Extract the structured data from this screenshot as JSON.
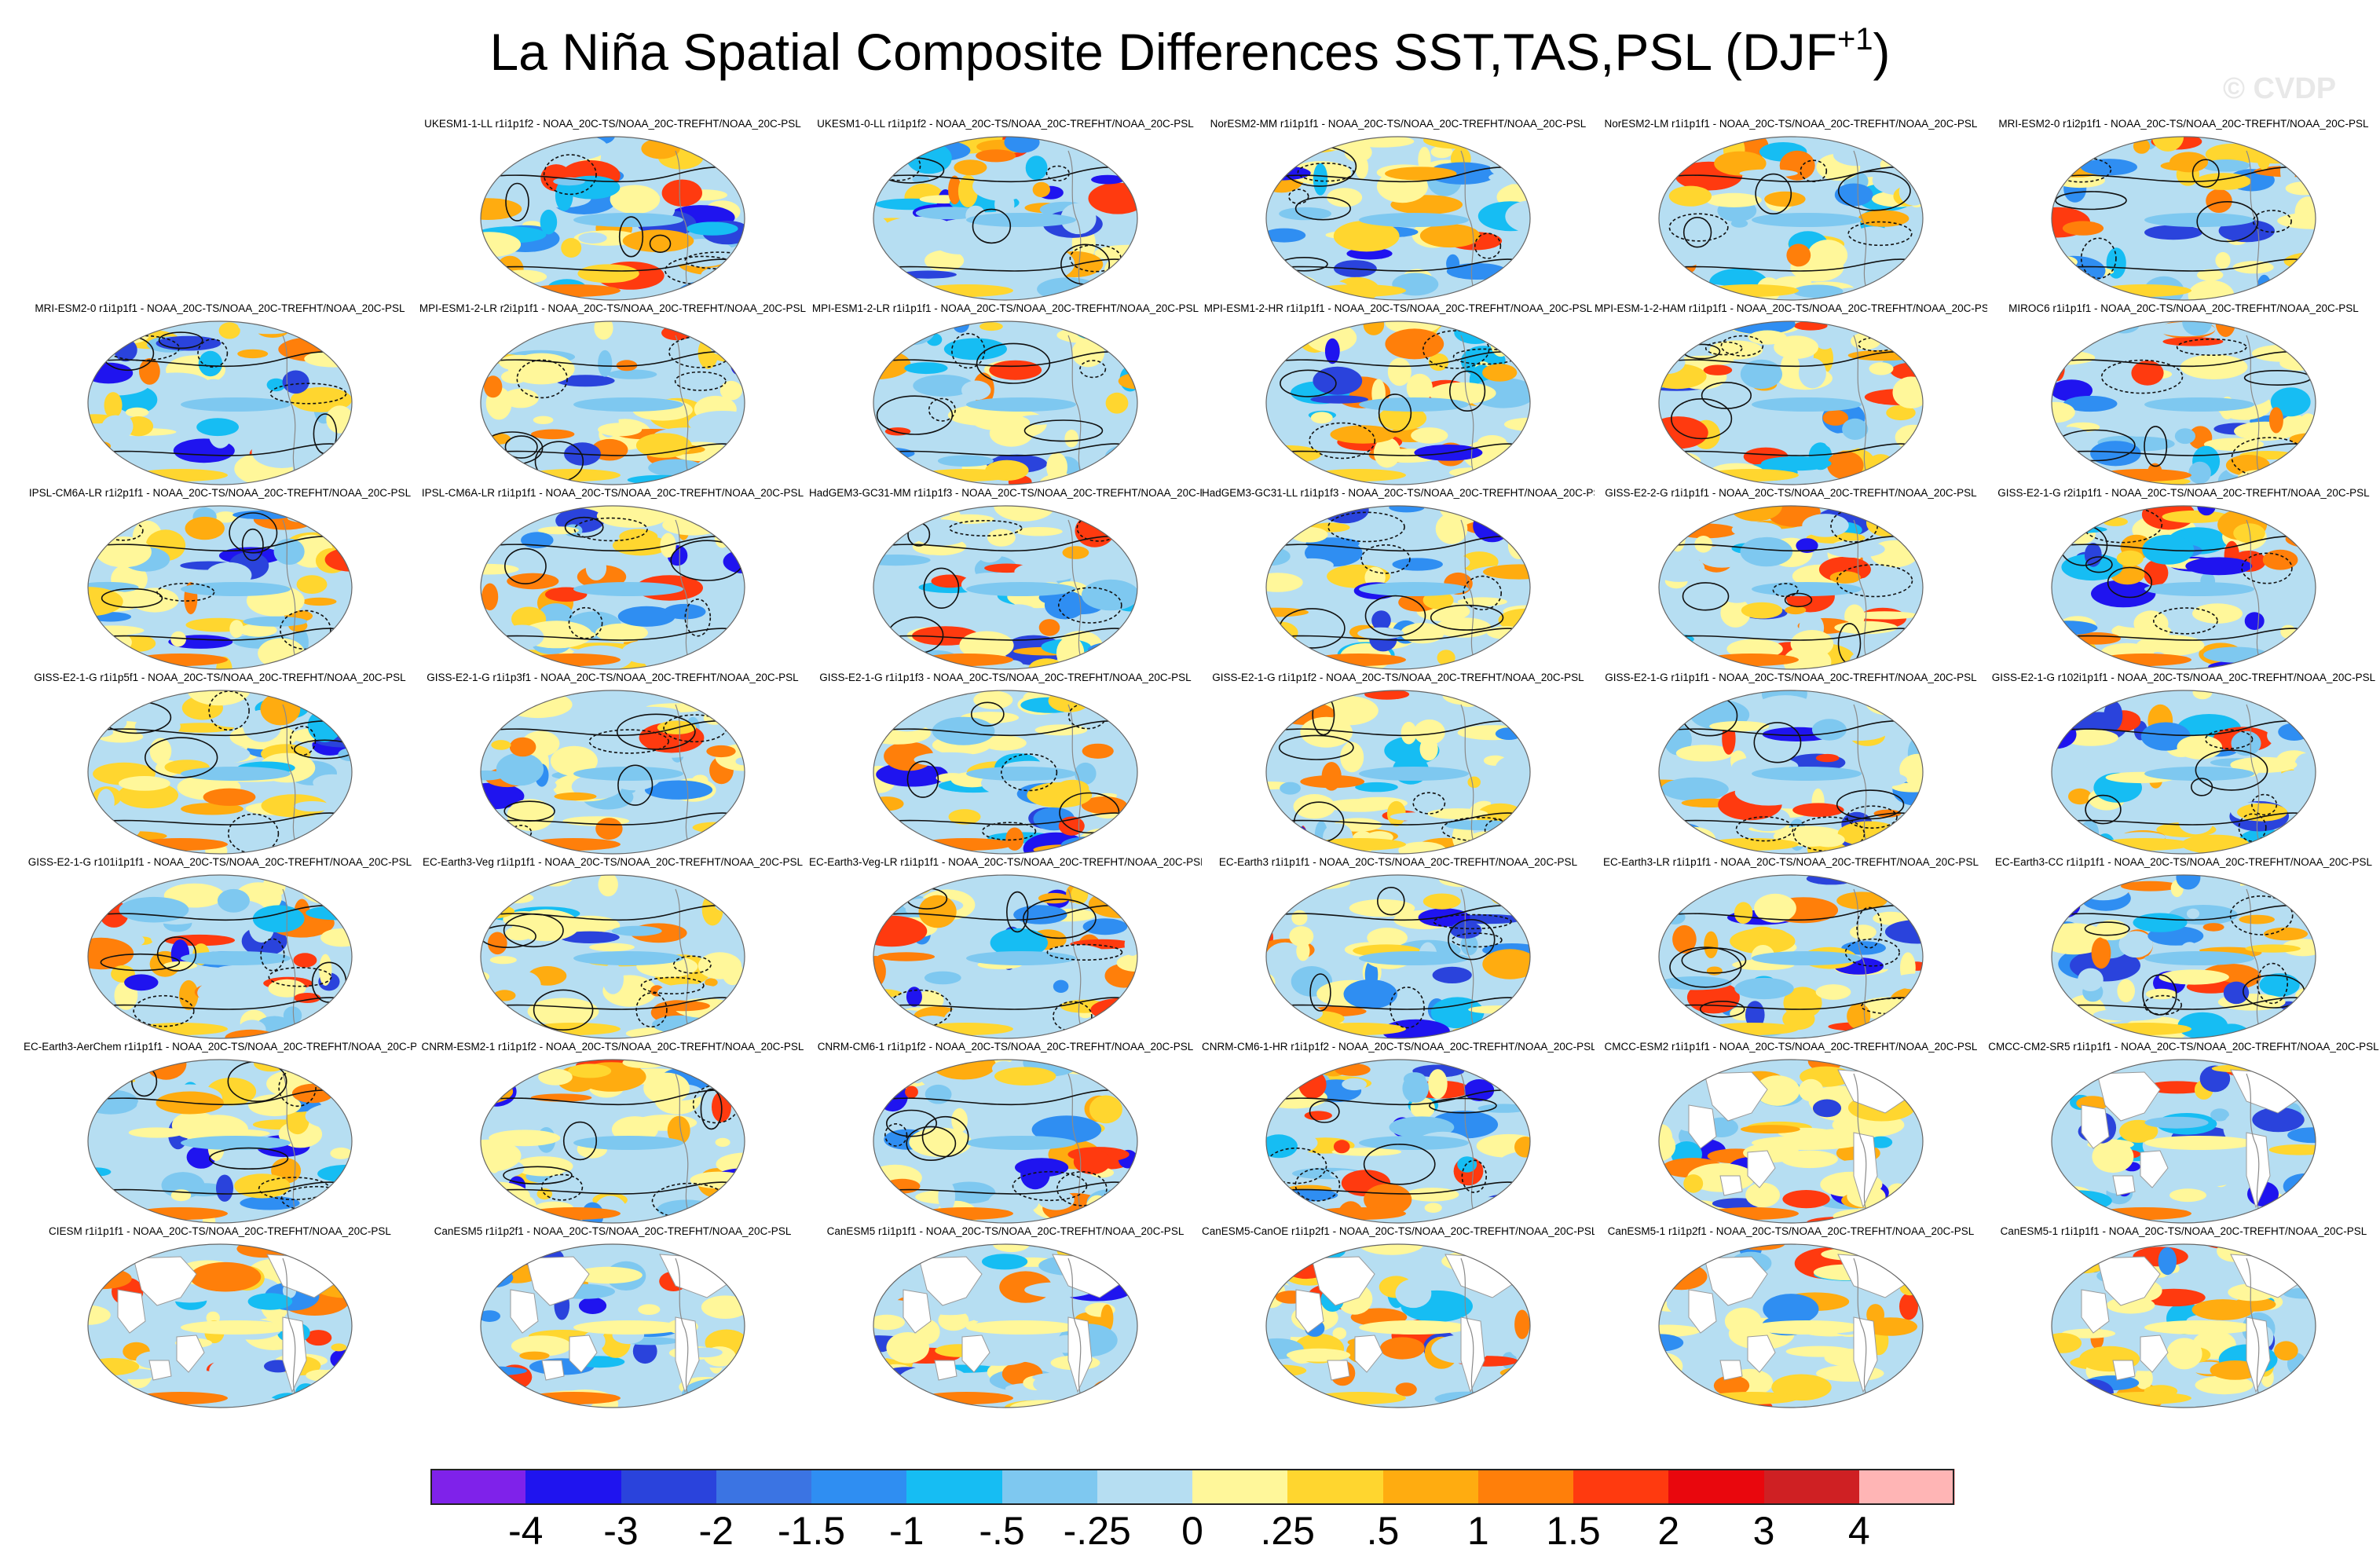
{
  "title": "La Niña Spatial Composite Differences SST,TAS,PSL (DJF",
  "title_superscript": "+1",
  "title_close": ")",
  "watermark": "© CVDP",
  "panel_suffix": " - NOAA_20C-TS/NOAA_20C-TREFHT/NOAA_20C-PSL",
  "rows": [
    [
      "",
      "UKESM1-1-LL r1i1p1f2",
      "UKESM1-0-LL r1i1p1f2",
      "NorESM2-MM r1i1p1f1",
      "NorESM2-LM r1i1p1f1",
      "MRI-ESM2-0 r1i2p1f1"
    ],
    [
      "MRI-ESM2-0 r1i1p1f1",
      "MPI-ESM1-2-LR r2i1p1f1",
      "MPI-ESM1-2-LR r1i1p1f1",
      "MPI-ESM1-2-HR r1i1p1f1",
      "MPI-ESM-1-2-HAM r1i1p1f1",
      "MIROC6 r1i1p1f1"
    ],
    [
      "IPSL-CM6A-LR r1i2p1f1",
      "IPSL-CM6A-LR r1i1p1f1",
      "HadGEM3-GC31-MM r1i1p1f3",
      "HadGEM3-GC31-LL r1i1p1f3",
      "GISS-E2-2-G r1i1p1f1",
      "GISS-E2-1-G r2i1p1f1"
    ],
    [
      "GISS-E2-1-G r1i1p5f1",
      "GISS-E2-1-G r1i1p3f1",
      "GISS-E2-1-G r1i1p1f3",
      "GISS-E2-1-G r1i1p1f2",
      "GISS-E2-1-G r1i1p1f1",
      "GISS-E2-1-G r102i1p1f1"
    ],
    [
      "GISS-E2-1-G r101i1p1f1",
      "EC-Earth3-Veg r1i1p1f1",
      "EC-Earth3-Veg-LR r1i1p1f1",
      "EC-Earth3 r1i1p1f1",
      "EC-Earth3-LR r1i1p1f1",
      "EC-Earth3-CC r1i1p1f1"
    ],
    [
      "EC-Earth3-AerChem r1i1p1f1",
      "CNRM-ESM2-1 r1i1p1f2",
      "CNRM-CM6-1 r1i1p1f2",
      "CNRM-CM6-1-HR r1i1p1f2",
      "CMCC-ESM2 r1i1p1f1",
      "CMCC-CM2-SR5 r1i1p1f1"
    ],
    [
      "CIESM r1i1p1f1",
      "CanESM5 r1i1p2f1",
      "CanESM5 r1i1p1f1",
      "CanESM5-CanOE r1i1p2f1",
      "CanESM5-1 r1i1p2f1",
      "CanESM5-1 r1i1p1f1"
    ]
  ],
  "colorbar": {
    "labels": [
      "-4",
      "-3",
      "-2",
      "-1.5",
      "-1",
      "-.5",
      "-.25",
      "0",
      ".25",
      ".5",
      "1",
      "1.5",
      "2",
      "3",
      "4"
    ],
    "colors": [
      "#7f22ea",
      "#1f14ef",
      "#2a43dc",
      "#3b74e3",
      "#2f8ef2",
      "#16bdf3",
      "#7ec8f0",
      "#b6def2",
      "#fff79a",
      "#ffd62f",
      "#ffac10",
      "#ff7f0a",
      "#ff3a0f",
      "#e9070d",
      "#cf2023",
      "#ffb5b5"
    ]
  }
}
